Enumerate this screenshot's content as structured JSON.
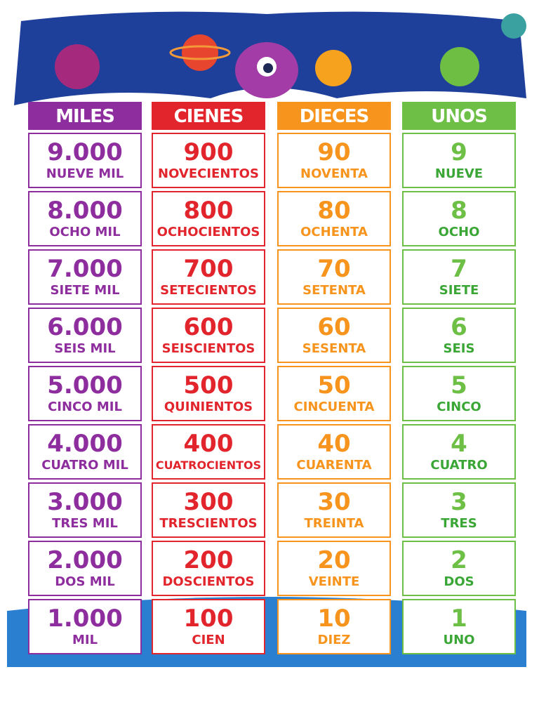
{
  "columns": [
    {
      "header": "MILES",
      "color": "#8e2d9e",
      "rows": [
        {
          "number": "9.000",
          "word": "NUEVE MIL"
        },
        {
          "number": "8.000",
          "word": "OCHO MIL"
        },
        {
          "number": "7.000",
          "word": "SIETE MIL"
        },
        {
          "number": "6.000",
          "word": "SEIS MIL"
        },
        {
          "number": "5.000",
          "word": "CINCO MIL"
        },
        {
          "number": "4.000",
          "word": "CUATRO MIL"
        },
        {
          "number": "3.000",
          "word": "TRES MIL"
        },
        {
          "number": "2.000",
          "word": "DOS MIL"
        },
        {
          "number": "1.000",
          "word": "MIL"
        }
      ]
    },
    {
      "header": "CIENES",
      "color": "#e2252c",
      "rows": [
        {
          "number": "900",
          "word": "NOVECIENTOS"
        },
        {
          "number": "800",
          "word": "OCHOCIENTOS"
        },
        {
          "number": "700",
          "word": "SETECIENTOS"
        },
        {
          "number": "600",
          "word": "SEISCIENTOS"
        },
        {
          "number": "500",
          "word": "QUINIENTOS"
        },
        {
          "number": "400",
          "word": "CUATROCIENTOS"
        },
        {
          "number": "300",
          "word": "TRESCIENTOS"
        },
        {
          "number": "200",
          "word": "DOSCIENTOS"
        },
        {
          "number": "100",
          "word": "CIEN"
        }
      ]
    },
    {
      "header": "DIECES",
      "color": "#f7941d",
      "rows": [
        {
          "number": "90",
          "word": "NOVENTA"
        },
        {
          "number": "80",
          "word": "OCHENTA"
        },
        {
          "number": "70",
          "word": "SETENTA"
        },
        {
          "number": "60",
          "word": "SESENTA"
        },
        {
          "number": "50",
          "word": "CINCUENTA"
        },
        {
          "number": "40",
          "word": "CUARENTA"
        },
        {
          "number": "30",
          "word": "TREINTA"
        },
        {
          "number": "20",
          "word": "VEINTE"
        },
        {
          "number": "10",
          "word": "DIEZ"
        }
      ]
    },
    {
      "header": "UNOS",
      "color": "#6dbf45",
      "rows": [
        {
          "number": "9",
          "word": "NUEVE"
        },
        {
          "number": "8",
          "word": "OCHO"
        },
        {
          "number": "7",
          "word": "SIETE"
        },
        {
          "number": "6",
          "word": "SEIS"
        },
        {
          "number": "5",
          "word": "CINCO"
        },
        {
          "number": "4",
          "word": "CUATRO"
        },
        {
          "number": "3",
          "word": "TRES"
        },
        {
          "number": "2",
          "word": "DOS"
        },
        {
          "number": "1",
          "word": "UNO"
        }
      ]
    }
  ]
}
